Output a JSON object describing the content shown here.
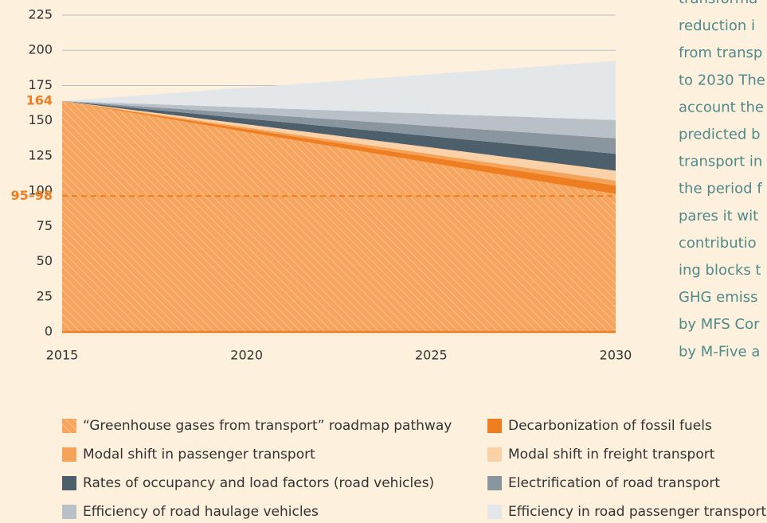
{
  "chart_data": {
    "type": "stacked_area",
    "x": [
      2015,
      2020,
      2025,
      2030
    ],
    "xlim": [
      2015,
      2030
    ],
    "xticks": [
      2015,
      2020,
      2025,
      2030
    ],
    "ylim": [
      0,
      225
    ],
    "yticks": [
      0,
      25,
      50,
      75,
      100,
      125,
      150,
      175,
      200,
      225
    ],
    "grid": true,
    "highlight_ticks": [
      164,
      {
        "value": 96.5,
        "label": "95–98"
      }
    ],
    "highlight_color": "#ef7d22",
    "series": [
      {
        "name": "“Greenhouse gases from transport” roadmap pathway",
        "color": "#f6a55e",
        "hatched": true,
        "values": [
          164,
          142,
          120,
          98
        ]
      },
      {
        "name": "Decarbonization of fossil fuels",
        "color": "#ef7d22",
        "values": [
          0,
          2,
          4,
          6
        ]
      },
      {
        "name": "Modal shift in passenger transport",
        "color": "#f5a35a",
        "values": [
          0,
          1.2,
          2.3,
          3.5
        ]
      },
      {
        "name": "Modal shift in freight transport",
        "color": "#fbd1a8",
        "values": [
          0,
          2.3,
          4.7,
          7
        ]
      },
      {
        "name": "Rates of occupancy and load factors (road vehicles)",
        "color": "#4d5f6b",
        "values": [
          0,
          4,
          8,
          12
        ]
      },
      {
        "name": "Electrification of road transport",
        "color": "#8a969f",
        "values": [
          0,
          3.7,
          7.3,
          11
        ]
      },
      {
        "name": "Efficiency of road haulage vehicles",
        "color": "#b9c0c8",
        "values": [
          0,
          4.3,
          8.7,
          13
        ]
      },
      {
        "name": "Efficiency in road passenger transport",
        "color": "#e3e7ea",
        "values": [
          0,
          14,
          28,
          42
        ]
      }
    ],
    "legend_order": [
      0,
      1,
      2,
      3,
      4,
      5,
      6,
      7
    ]
  },
  "side_text": [
    "transforma",
    "reduction i",
    "from transp",
    "to 2030 The",
    "account the",
    "predicted b",
    "transport in",
    "the period f",
    "pares it wit",
    "contributio",
    "ing blocks t",
    "GHG emiss",
    "by MFS Cor",
    "by M-Five a"
  ]
}
